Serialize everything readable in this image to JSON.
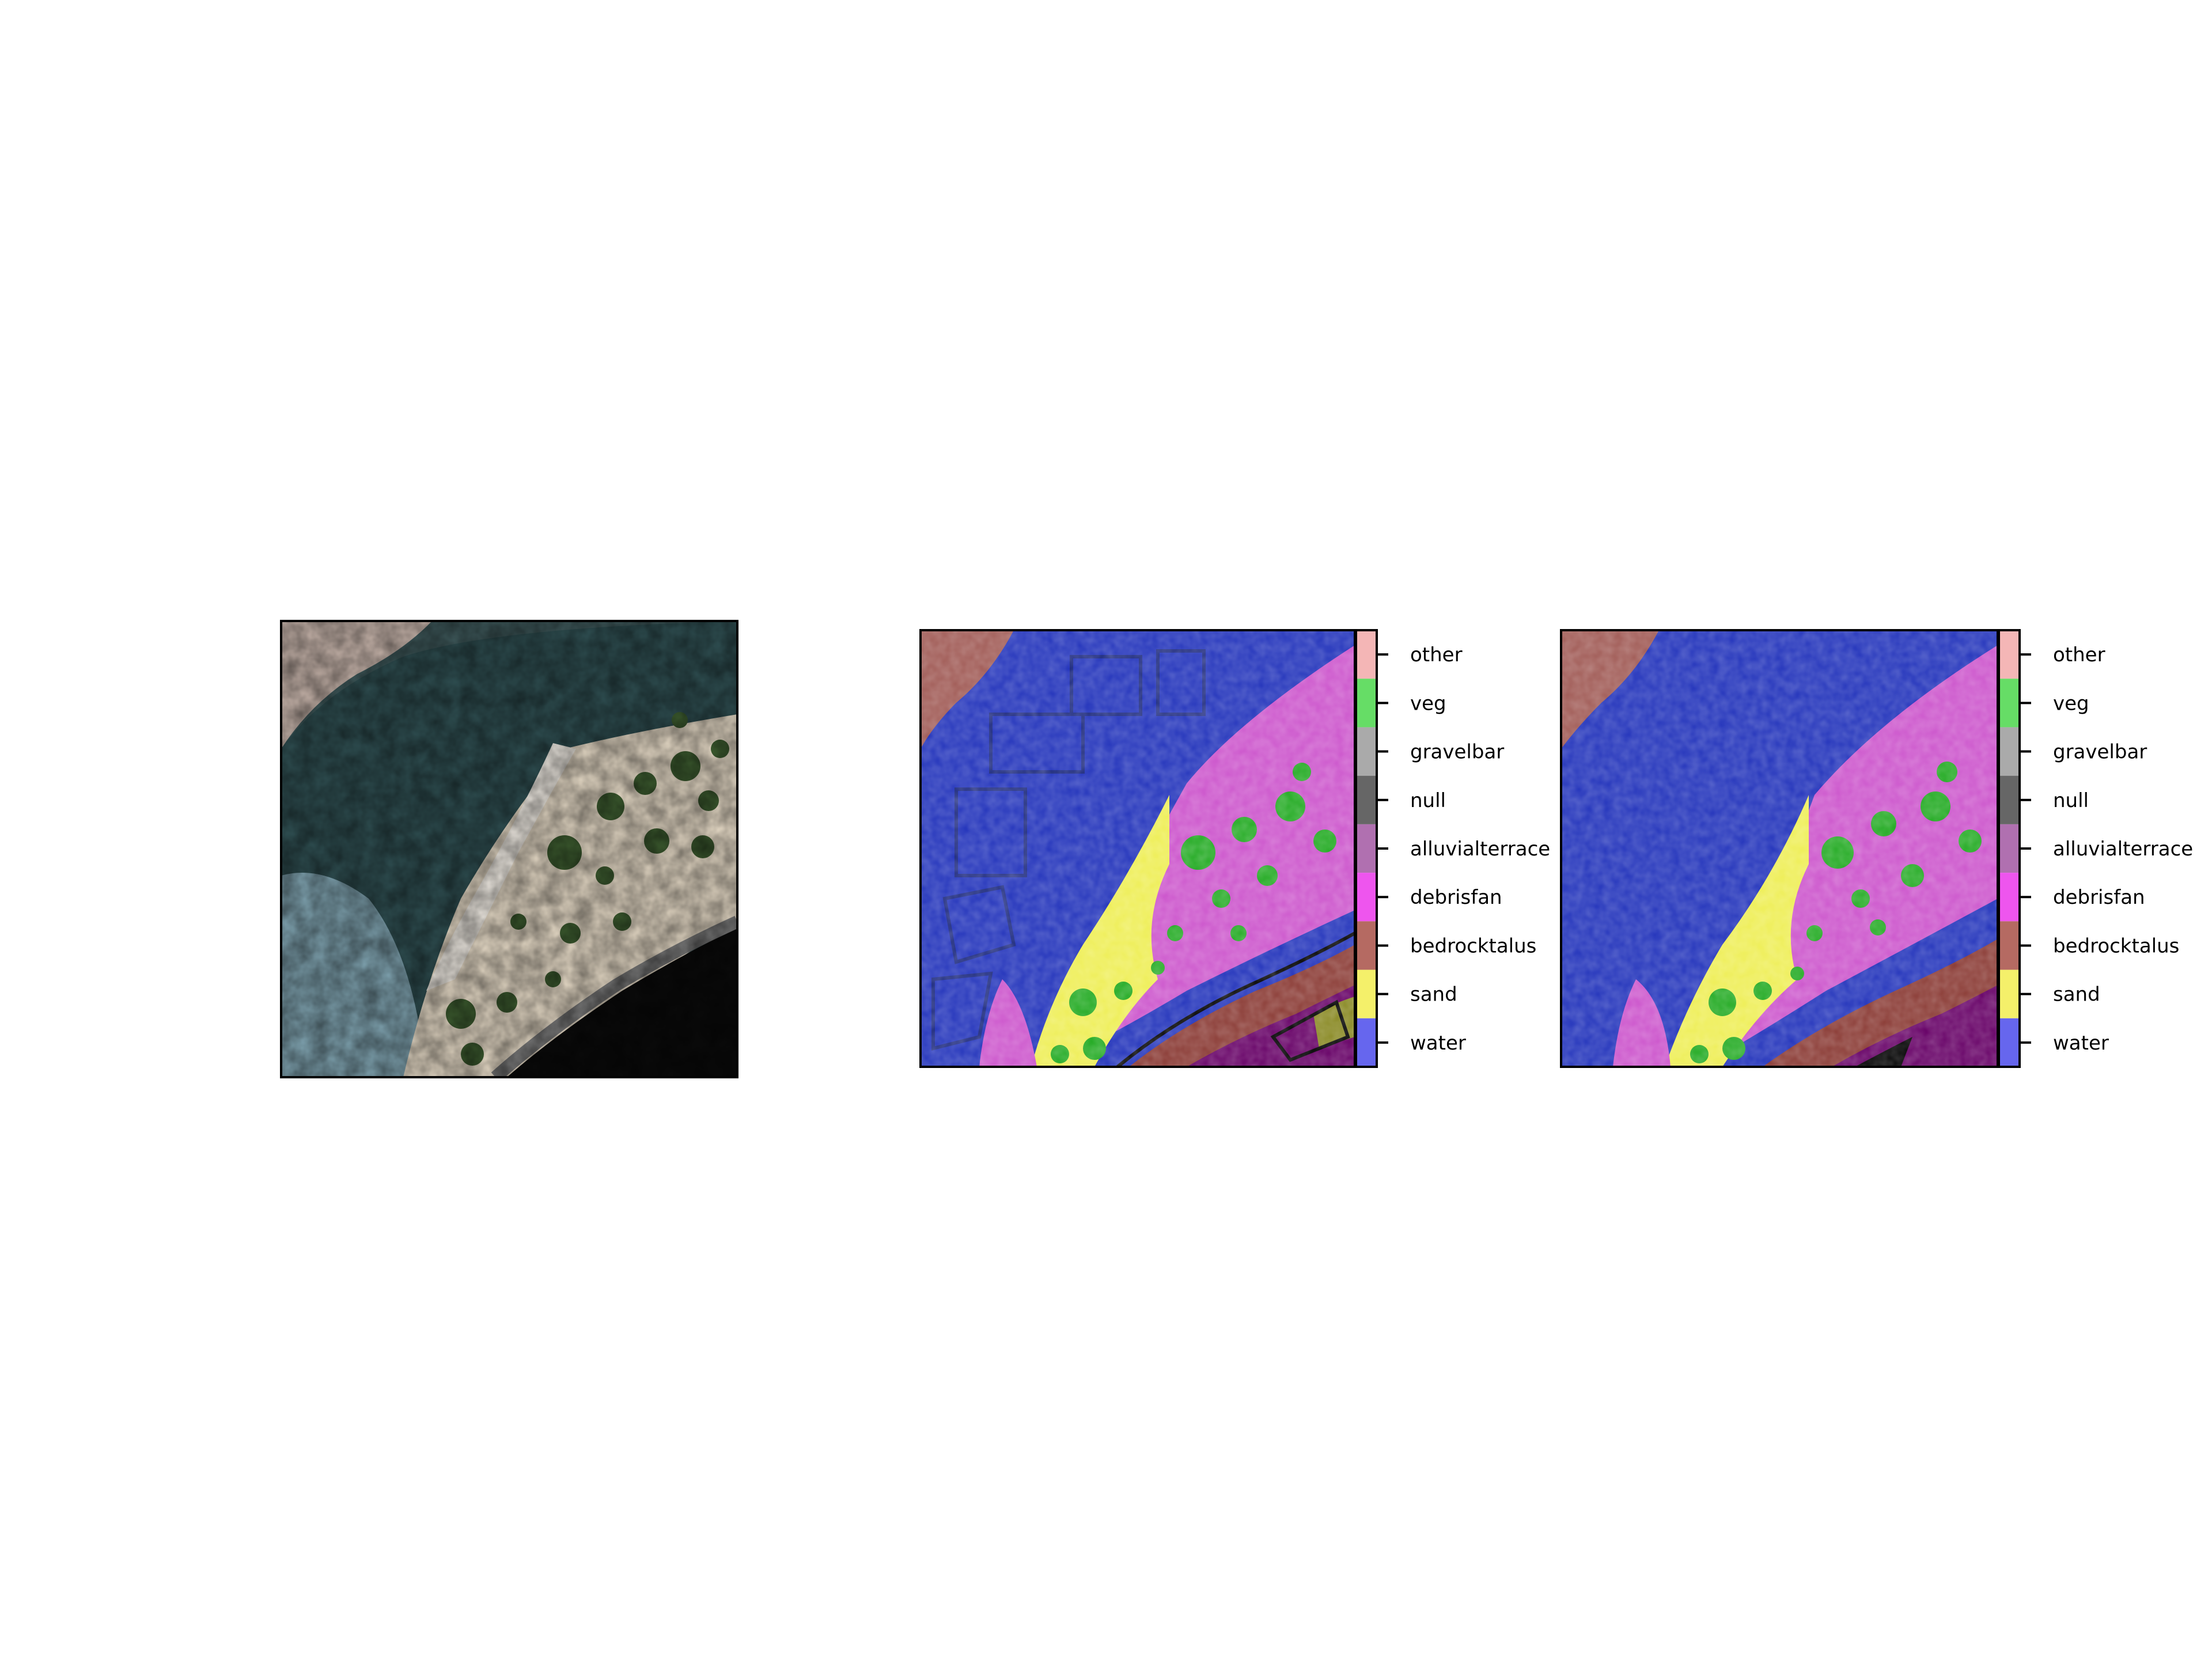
{
  "classes": [
    {
      "name": "other",
      "color": "#f4b6b6"
    },
    {
      "name": "veg",
      "color": "#66dd66"
    },
    {
      "name": "gravelbar",
      "color": "#aaaaaa"
    },
    {
      "name": "null",
      "color": "#666666"
    },
    {
      "name": "alluvialterrace",
      "color": "#b070b0"
    },
    {
      "name": "debrisfan",
      "color": "#ee55ee"
    },
    {
      "name": "bedrocktalus",
      "color": "#b56a62"
    },
    {
      "name": "sand",
      "color": "#f4f06a"
    },
    {
      "name": "water",
      "color": "#6666ee"
    }
  ],
  "panels": [
    {
      "title": ""
    },
    {
      "title": ""
    },
    {
      "title": ""
    }
  ]
}
